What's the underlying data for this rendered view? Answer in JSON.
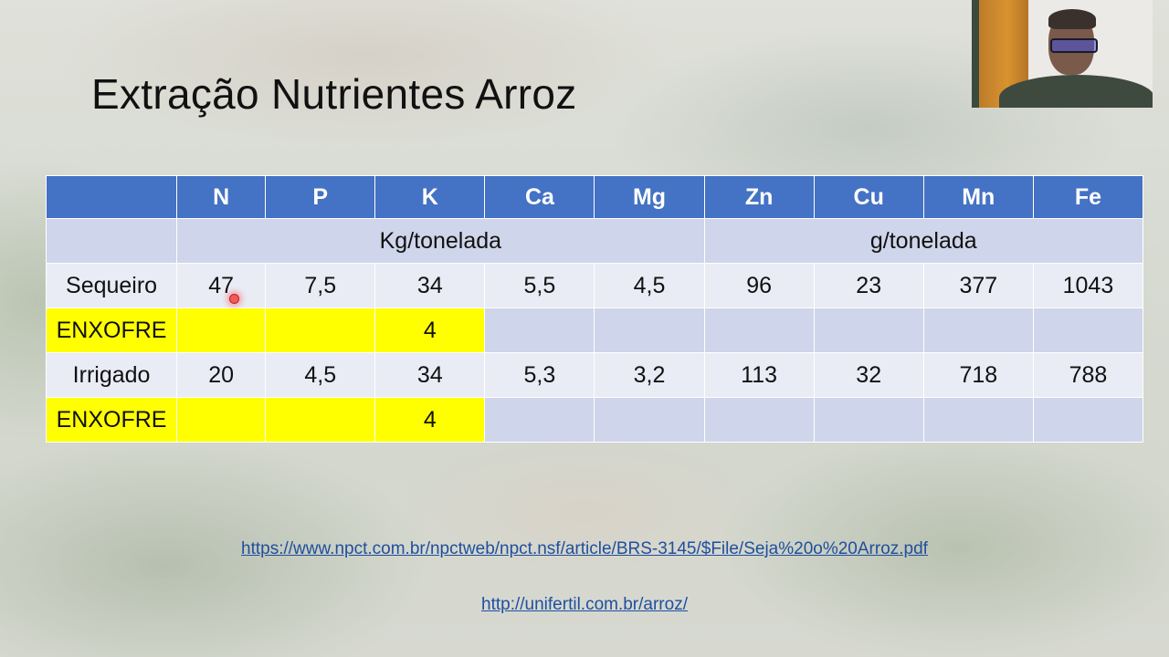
{
  "slide": {
    "title": "Extração Nutrientes Arroz",
    "table": {
      "headers": [
        "",
        "N",
        "P",
        "K",
        "Ca",
        "Mg",
        "Zn",
        "Cu",
        "Mn",
        "Fe"
      ],
      "units": {
        "macro": "Kg/tonelada",
        "micro": "g/tonelada"
      },
      "rows": [
        {
          "label": "Sequeiro",
          "values": [
            "47",
            "7,5",
            "34",
            "5,5",
            "4,5",
            "96",
            "23",
            "377",
            "1043"
          ]
        },
        {
          "label": "ENXOFRE",
          "values": [
            "",
            "",
            "4",
            "",
            "",
            "",
            "",
            "",
            ""
          ],
          "highlight": "#ffff00"
        },
        {
          "label": "Irrigado",
          "values": [
            "20",
            "4,5",
            "34",
            "5,3",
            "3,2",
            "113",
            "32",
            "718",
            "788"
          ]
        },
        {
          "label": "ENXOFRE",
          "values": [
            "",
            "",
            "4",
            "",
            "",
            "",
            "",
            "",
            ""
          ],
          "highlight": "#ffff00"
        }
      ]
    },
    "links": [
      "https://www.npct.com.br/npctweb/npct.nsf/article/BRS-3145/$File/Seja%20o%20Arroz.pdf",
      "http://unifertil.com.br/arroz/"
    ]
  },
  "colors": {
    "header_bg": "#4472c4",
    "unit_row_bg": "#cfd5ea",
    "light_row_bg": "#e9ebf5",
    "highlight": "#ffff00",
    "link": "#1f4f9e"
  },
  "webcam": {
    "icon": "webcam-video-feed"
  }
}
